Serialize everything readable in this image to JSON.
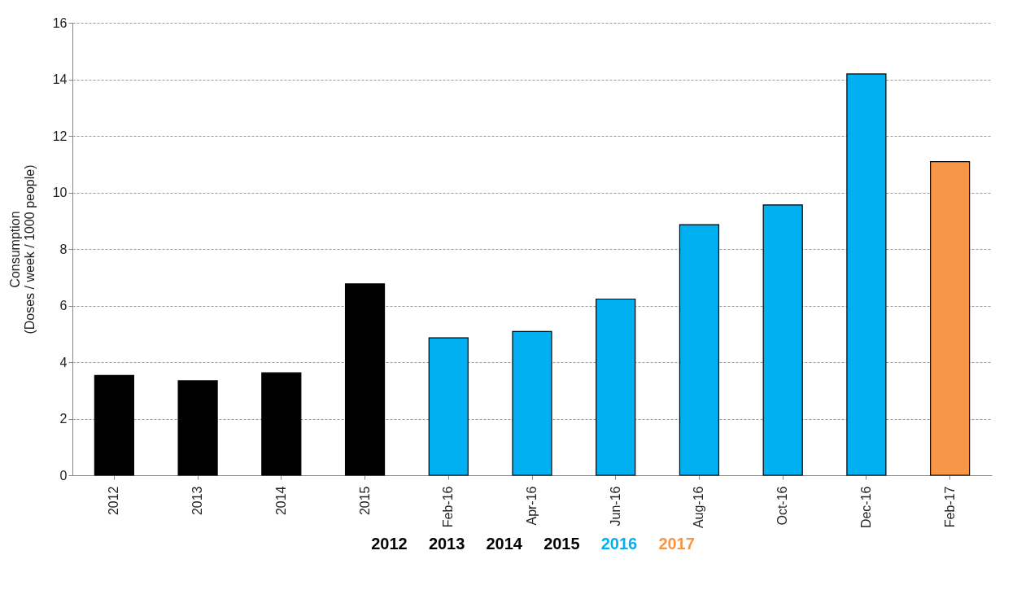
{
  "chart_data": {
    "type": "bar",
    "ylabel": "Consumption\n(Doses / week / 1000 people)",
    "categories": [
      "2012",
      "2013",
      "2014",
      "2015",
      "Feb-16",
      "Apr-16",
      "Jun-16",
      "Aug-16",
      "Oct-16",
      "Dec-16",
      "Feb-17"
    ],
    "series": [
      {
        "color": "#000000",
        "values": [
          3.53,
          3.34,
          3.62,
          6.77,
          null,
          null,
          null,
          null,
          null,
          null,
          null
        ]
      },
      {
        "name": "2016",
        "color": "#00b0f0",
        "values": [
          null,
          null,
          null,
          null,
          4.86,
          5.08,
          6.23,
          8.86,
          9.56,
          14.19,
          null
        ]
      },
      {
        "name": "2017",
        "color": "#f79646",
        "values": [
          null,
          null,
          null,
          null,
          null,
          null,
          null,
          null,
          null,
          null,
          11.09
        ]
      }
    ],
    "annotations": [
      "2012",
      "2013",
      "2014",
      "2015"
    ],
    "ylim": [
      0,
      16
    ],
    "yticks": [
      0,
      2,
      4,
      6,
      8,
      10,
      12,
      14,
      16
    ],
    "grid": "y",
    "legend": "bottom"
  }
}
